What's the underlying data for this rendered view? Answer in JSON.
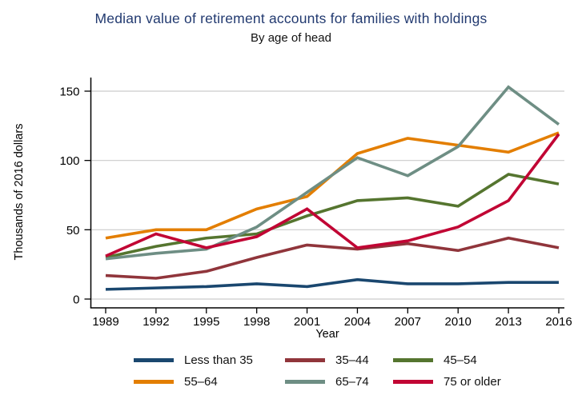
{
  "title": "Median value of retirement accounts for families with holdings",
  "subtitle": "By age of head",
  "chart_data": {
    "type": "line",
    "x": [
      1989,
      1992,
      1995,
      1998,
      2001,
      2004,
      2007,
      2010,
      2013,
      2016
    ],
    "xlabel": "Year",
    "ylabel": "Thousands of 2016 dollars",
    "ylim": [
      0,
      150
    ],
    "yticks": [
      0,
      50,
      100,
      150
    ],
    "grid": true,
    "legend_position": "bottom",
    "series": [
      {
        "name": "Less than 35",
        "color": "#1a476f",
        "values": [
          7,
          8,
          9,
          11,
          9,
          14,
          11,
          11,
          12,
          12
        ]
      },
      {
        "name": "35–44",
        "color": "#90353b",
        "values": [
          17,
          15,
          20,
          30,
          39,
          36,
          40,
          35,
          44,
          37
        ]
      },
      {
        "name": "45–54",
        "color": "#55752f",
        "values": [
          30,
          38,
          44,
          47,
          60,
          71,
          73,
          67,
          90,
          83
        ]
      },
      {
        "name": "55–64",
        "color": "#e37e00",
        "values": [
          44,
          50,
          50,
          65,
          74,
          105,
          116,
          111,
          106,
          120
        ]
      },
      {
        "name": "65–74",
        "color": "#6e8e84",
        "values": [
          29,
          33,
          36,
          52,
          77,
          102,
          89,
          110,
          153,
          126
        ]
      },
      {
        "name": "75 or older",
        "color": "#c10534",
        "values": [
          31,
          47,
          37,
          45,
          65,
          37,
          42,
          52,
          71,
          119
        ]
      }
    ]
  },
  "colors": {
    "title_text": "#223a70",
    "axis": "#000000",
    "gridline": "#cccccc",
    "tick_text": "#000000"
  }
}
